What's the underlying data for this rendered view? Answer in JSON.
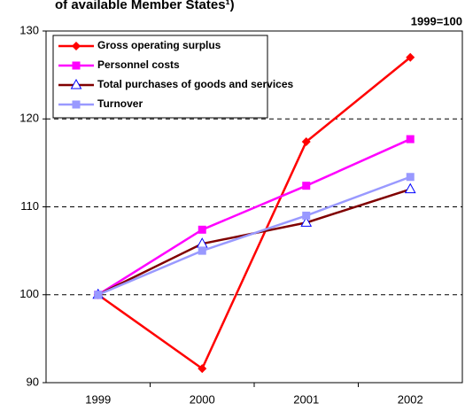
{
  "chart_data": {
    "type": "line",
    "title": "of available Member States¹)",
    "annotation": "1999=100",
    "categories": [
      "1999",
      "2000",
      "2001",
      "2002"
    ],
    "series": [
      {
        "name": "Gross operating surplus",
        "color": "#ff0000",
        "marker": "diamond",
        "values": [
          100,
          91.6,
          117.4,
          127.0
        ]
      },
      {
        "name": "Personnel costs",
        "color": "#ff00ff",
        "marker": "square",
        "values": [
          100,
          107.4,
          112.4,
          117.7
        ]
      },
      {
        "name": "Total purchases of goods and services",
        "color": "#800000",
        "marker": "triangle",
        "values": [
          100,
          105.8,
          108.2,
          112.0
        ]
      },
      {
        "name": "Turnover",
        "color": "#9999ff",
        "marker": "square",
        "values": [
          100,
          105.0,
          109.0,
          113.4
        ]
      }
    ],
    "ylim": [
      90,
      130
    ],
    "yticks": [
      90,
      100,
      110,
      120,
      130
    ],
    "grid": true
  }
}
